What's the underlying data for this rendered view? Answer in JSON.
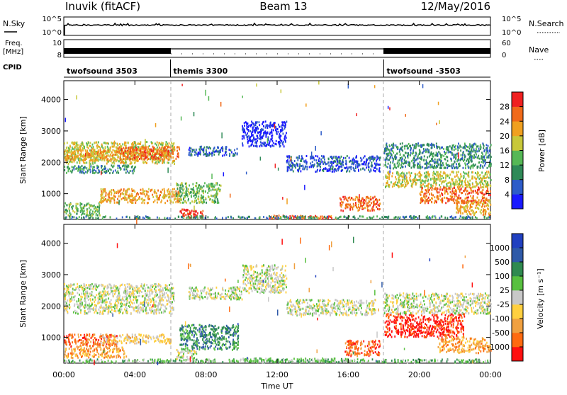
{
  "header": {
    "station": "Inuvik (fitACF)",
    "beam": "Beam 13",
    "date": "12/May/2016"
  },
  "top_panels": {
    "nsky_label": "N.Sky",
    "nsearch_label": "N.Search",
    "freq_label": "Freq.",
    "freq_unit": "[MHz]",
    "nave_label": "Nave",
    "cpid_label": "CPID",
    "nsky_ticks": [
      "10^5",
      "10^0"
    ],
    "nsearch_ticks": [
      "10^5",
      "10^0"
    ],
    "freq_ticks": [
      "10",
      "8"
    ],
    "nave_ticks": [
      "60",
      "0"
    ]
  },
  "colors": {
    "power": [
      "#1a1aff",
      "#2d5cc9",
      "#2f8a58",
      "#56b856",
      "#c8c83a",
      "#f0a020",
      "#f06a1a",
      "#f02020"
    ],
    "velocity": [
      "#ff1010",
      "#ff6a10",
      "#f0a040",
      "#ffd040",
      "#c8c8c8",
      "#58c040",
      "#2f8a50",
      "#2f5aa8",
      "#2040c0"
    ]
  },
  "chart_data": [
    {
      "type": "heatmap",
      "name": "cpid",
      "segments": [
        {
          "label": "twofsound 3503",
          "start": 0,
          "end": 6
        },
        {
          "label": "themis 3300",
          "start": 6,
          "end": 18
        },
        {
          "label": "twofsound -3503",
          "start": 18,
          "end": 24
        }
      ]
    },
    {
      "type": "heatmap",
      "name": "power",
      "xlabel": "",
      "ylabel": "Slant Range [km]",
      "xlim": [
        0,
        24
      ],
      "ylim": [
        180,
        4600
      ],
      "yticks": [
        1000,
        2000,
        3000,
        4000
      ],
      "colorbar_label": "Power [dB]",
      "colorbar_ticks": [
        "4",
        "8",
        "12",
        "16",
        "20",
        "24",
        "28"
      ],
      "bands": [
        {
          "t0": 0.0,
          "t1": 6.2,
          "r0": 1950,
          "r1": 2650,
          "level": 4
        },
        {
          "t0": 0.0,
          "t1": 6.0,
          "r0": 2050,
          "r1": 2400,
          "level": 5
        },
        {
          "t0": 3.0,
          "t1": 6.5,
          "r0": 2100,
          "r1": 2500,
          "level": 6
        },
        {
          "t0": 0.0,
          "t1": 4.0,
          "r0": 1650,
          "r1": 1900,
          "level": 2
        },
        {
          "t0": 0.0,
          "t1": 2.0,
          "r0": 300,
          "r1": 700,
          "level": 3
        },
        {
          "t0": 2.0,
          "t1": 6.5,
          "r0": 700,
          "r1": 1150,
          "level": 5
        },
        {
          "t0": 6.3,
          "t1": 8.8,
          "r0": 700,
          "r1": 1350,
          "level": 3
        },
        {
          "t0": 6.5,
          "t1": 7.8,
          "r0": 200,
          "r1": 500,
          "level": 7
        },
        {
          "t0": 7.0,
          "t1": 9.8,
          "r0": 2200,
          "r1": 2500,
          "level": 1
        },
        {
          "t0": 10.0,
          "t1": 12.5,
          "r0": 2500,
          "r1": 3300,
          "level": 0
        },
        {
          "t0": 12.5,
          "t1": 17.8,
          "r0": 1700,
          "r1": 2200,
          "level": 1
        },
        {
          "t0": 15.5,
          "t1": 17.8,
          "r0": 450,
          "r1": 900,
          "level": 6
        },
        {
          "t0": 11.5,
          "t1": 15.5,
          "r0": 200,
          "r1": 300,
          "level": 6
        },
        {
          "t0": 18.0,
          "t1": 24.0,
          "r0": 1800,
          "r1": 2600,
          "level": 2
        },
        {
          "t0": 18.0,
          "t1": 24.0,
          "r0": 1200,
          "r1": 1700,
          "level": 4
        },
        {
          "t0": 20.0,
          "t1": 24.0,
          "r0": 700,
          "r1": 1200,
          "level": 6
        },
        {
          "t0": 22.0,
          "t1": 24.0,
          "r0": 300,
          "r1": 800,
          "level": 5
        },
        {
          "t0": 0.0,
          "t1": 24.0,
          "r0": 200,
          "r1": 280,
          "level": 2
        }
      ]
    },
    {
      "type": "heatmap",
      "name": "velocity",
      "xlabel": "Time UT",
      "ylabel": "Slant Range [km]",
      "xlim": [
        0,
        24
      ],
      "ylim": [
        180,
        4600
      ],
      "yticks": [
        1000,
        2000,
        3000,
        4000
      ],
      "xticks": [
        "00:00",
        "04:00",
        "08:00",
        "12:00",
        "16:00",
        "20:00",
        "00:00"
      ],
      "colorbar_label": "Velocity [m s⁻¹]",
      "colorbar_ticks": [
        "-1000",
        "-500",
        "-100",
        "-25",
        "25",
        "100",
        "500",
        "1000"
      ],
      "bands": [
        {
          "t0": 0.0,
          "t1": 6.2,
          "r0": 1750,
          "r1": 2700,
          "level": 4
        },
        {
          "t0": 0.0,
          "t1": 3.0,
          "r0": 700,
          "r1": 1100,
          "level": 1
        },
        {
          "t0": 0.0,
          "t1": 3.5,
          "r0": 350,
          "r1": 700,
          "level": 2
        },
        {
          "t0": 2.0,
          "t1": 6.0,
          "r0": 800,
          "r1": 1100,
          "level": 3
        },
        {
          "t0": 6.5,
          "t1": 9.8,
          "r0": 600,
          "r1": 1400,
          "level": 6
        },
        {
          "t0": 6.3,
          "t1": 7.5,
          "r0": 300,
          "r1": 600,
          "level": 4
        },
        {
          "t0": 7.0,
          "t1": 10.0,
          "r0": 2200,
          "r1": 2600,
          "level": 4
        },
        {
          "t0": 10.0,
          "t1": 12.5,
          "r0": 2400,
          "r1": 3300,
          "level": 4
        },
        {
          "t0": 12.5,
          "t1": 17.5,
          "r0": 1700,
          "r1": 2200,
          "level": 4
        },
        {
          "t0": 15.8,
          "t1": 17.8,
          "r0": 400,
          "r1": 900,
          "level": 1
        },
        {
          "t0": 10.0,
          "t1": 16.0,
          "r0": 200,
          "r1": 330,
          "level": 5
        },
        {
          "t0": 18.0,
          "t1": 22.5,
          "r0": 1000,
          "r1": 1750,
          "level": 0
        },
        {
          "t0": 18.0,
          "t1": 24.0,
          "r0": 1750,
          "r1": 2400,
          "level": 4
        },
        {
          "t0": 21.0,
          "t1": 24.0,
          "r0": 500,
          "r1": 1000,
          "level": 2
        },
        {
          "t0": 0.0,
          "t1": 24.0,
          "r0": 200,
          "r1": 300,
          "level": 5
        }
      ]
    }
  ]
}
